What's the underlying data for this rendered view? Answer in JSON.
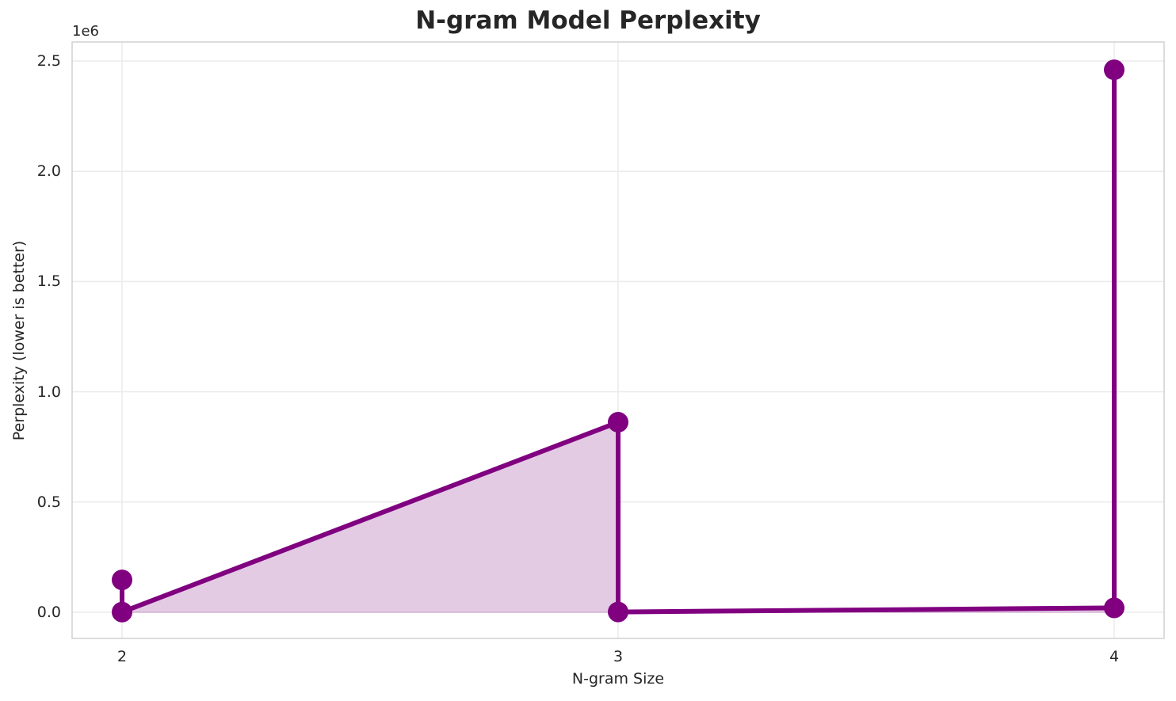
{
  "chart_data": {
    "type": "line",
    "title": "N-gram Model Perplexity",
    "xlabel": "N-gram Size",
    "ylabel": "Perplexity (lower is better)",
    "y_offset_label": "1e6",
    "x_ticks": [
      "2",
      "3",
      "4"
    ],
    "y_ticks": [
      "0.0",
      "0.5",
      "1.0",
      "1.5",
      "2.0",
      "2.5"
    ],
    "ylim": [
      -120000,
      2600000
    ],
    "xlim": [
      1.9,
      4.1
    ],
    "grid": true,
    "fill_under_line": true,
    "series": [
      {
        "name": "Perplexity",
        "color": "#800080",
        "fill_color": "#e3cbe3",
        "points": [
          {
            "x": 2,
            "y": 147000
          },
          {
            "x": 2,
            "y": 1000
          },
          {
            "x": 3,
            "y": 862000
          },
          {
            "x": 3,
            "y": 1500
          },
          {
            "x": 4,
            "y": 20000
          },
          {
            "x": 4,
            "y": 2460000
          }
        ]
      }
    ]
  }
}
